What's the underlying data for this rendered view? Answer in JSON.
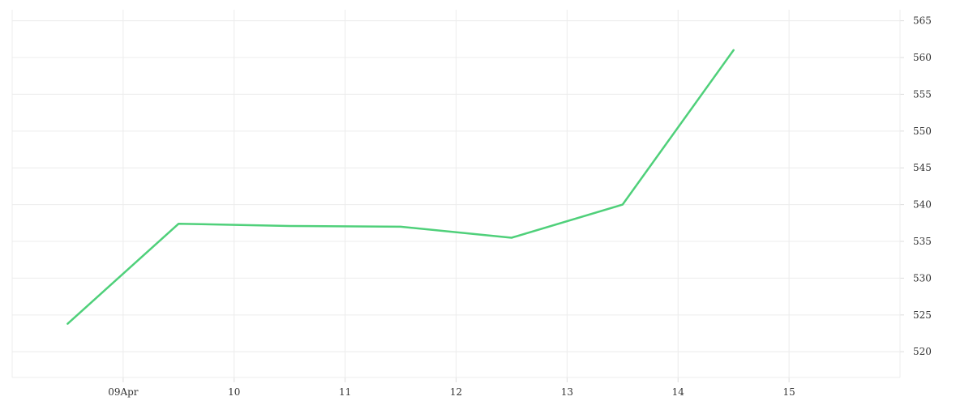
{
  "chart_data": {
    "type": "line",
    "title": "",
    "xlabel": "",
    "ylabel": "",
    "x_ticks": [
      {
        "value": "2024-04-09",
        "label": "09Apr"
      },
      {
        "value": "2024-04-10",
        "label": "10"
      },
      {
        "value": "2024-04-11",
        "label": "11"
      },
      {
        "value": "2024-04-12",
        "label": "12"
      },
      {
        "value": "2024-04-13",
        "label": "13"
      },
      {
        "value": "2024-04-14",
        "label": "14"
      },
      {
        "value": "2024-04-15",
        "label": "15"
      }
    ],
    "xlim": [
      "2024-04-08T00:00",
      "2024-04-16T00:00"
    ],
    "ylim": [
      516.5,
      566.5
    ],
    "y_ticks": [
      520,
      525,
      530,
      535,
      540,
      545,
      550,
      555,
      560,
      565
    ],
    "grid": true,
    "y_axis_position": "right",
    "series": [
      {
        "color": "#4fd07a",
        "points": [
          {
            "x": "2024-04-08T12:00",
            "y": 523.8
          },
          {
            "x": "2024-04-09T12:00",
            "y": 537.4
          },
          {
            "x": "2024-04-10T12:00",
            "y": 537.1
          },
          {
            "x": "2024-04-11T12:00",
            "y": 537.0
          },
          {
            "x": "2024-04-12T12:00",
            "y": 535.5
          },
          {
            "x": "2024-04-13T12:00",
            "y": 540.0
          },
          {
            "x": "2024-04-14T12:00",
            "y": 561.0
          }
        ]
      }
    ]
  }
}
